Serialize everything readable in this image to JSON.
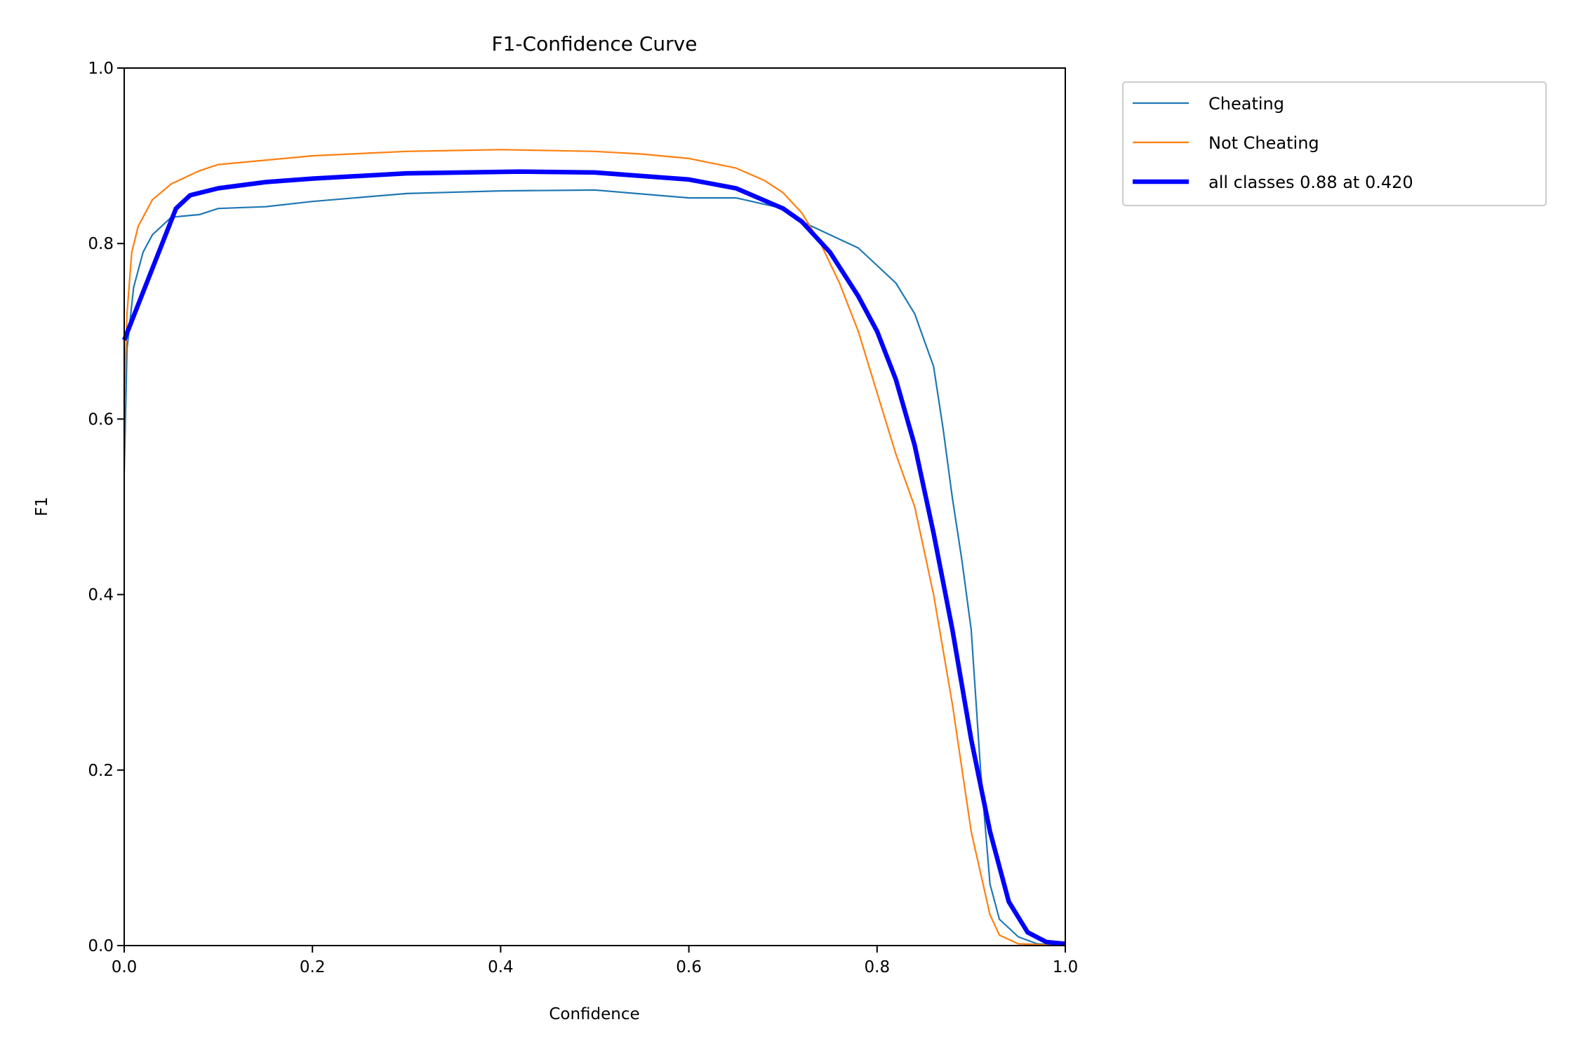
{
  "chart_data": {
    "type": "line",
    "title": "F1-Confidence Curve",
    "xlabel": "Confidence",
    "ylabel": "F1",
    "xlim": [
      0,
      1
    ],
    "ylim": [
      0,
      1
    ],
    "xticks": [
      "0.0",
      "0.2",
      "0.4",
      "0.6",
      "0.8",
      "1.0"
    ],
    "yticks": [
      "0.0",
      "0.2",
      "0.4",
      "0.6",
      "0.8",
      "1.0"
    ],
    "grid": false,
    "legend_placement": "outside-top-right",
    "series": [
      {
        "name": "Cheating",
        "color": "#1f77b4",
        "x": [
          0,
          0.003,
          0.01,
          0.02,
          0.03,
          0.05,
          0.08,
          0.1,
          0.15,
          0.2,
          0.3,
          0.4,
          0.5,
          0.6,
          0.65,
          0.7,
          0.72,
          0.75,
          0.78,
          0.8,
          0.82,
          0.84,
          0.85,
          0.86,
          0.87,
          0.88,
          0.89,
          0.9,
          0.91,
          0.92,
          0.93,
          0.95,
          0.97,
          1.0
        ],
        "y": [
          0.54,
          0.68,
          0.75,
          0.79,
          0.81,
          0.83,
          0.833,
          0.84,
          0.842,
          0.848,
          0.857,
          0.86,
          0.861,
          0.852,
          0.852,
          0.84,
          0.825,
          0.81,
          0.795,
          0.775,
          0.755,
          0.72,
          0.69,
          0.66,
          0.59,
          0.51,
          0.44,
          0.36,
          0.2,
          0.07,
          0.03,
          0.01,
          0.002,
          0
        ]
      },
      {
        "name": "Not Cheating",
        "color": "#ff7f0e",
        "x": [
          0,
          0.003,
          0.008,
          0.015,
          0.03,
          0.05,
          0.08,
          0.1,
          0.15,
          0.2,
          0.3,
          0.4,
          0.5,
          0.55,
          0.6,
          0.65,
          0.68,
          0.7,
          0.72,
          0.74,
          0.76,
          0.78,
          0.8,
          0.82,
          0.84,
          0.86,
          0.88,
          0.9,
          0.92,
          0.93,
          0.95,
          1.0
        ],
        "y": [
          0.62,
          0.72,
          0.79,
          0.82,
          0.85,
          0.868,
          0.883,
          0.89,
          0.895,
          0.9,
          0.905,
          0.907,
          0.905,
          0.902,
          0.897,
          0.886,
          0.872,
          0.858,
          0.835,
          0.8,
          0.755,
          0.7,
          0.63,
          0.56,
          0.5,
          0.4,
          0.275,
          0.13,
          0.035,
          0.012,
          0.002,
          0
        ]
      },
      {
        "name": "all classes 0.88 at 0.420",
        "color": "#0000ff",
        "x": [
          0,
          0.055,
          0.07,
          0.1,
          0.15,
          0.2,
          0.3,
          0.42,
          0.5,
          0.6,
          0.65,
          0.7,
          0.72,
          0.75,
          0.78,
          0.8,
          0.82,
          0.84,
          0.86,
          0.88,
          0.9,
          0.92,
          0.94,
          0.96,
          0.98,
          1.0
        ],
        "y": [
          0.69,
          0.84,
          0.855,
          0.863,
          0.87,
          0.874,
          0.88,
          0.882,
          0.881,
          0.873,
          0.863,
          0.84,
          0.825,
          0.79,
          0.74,
          0.7,
          0.645,
          0.57,
          0.47,
          0.36,
          0.235,
          0.13,
          0.05,
          0.015,
          0.004,
          0.002
        ]
      }
    ]
  }
}
